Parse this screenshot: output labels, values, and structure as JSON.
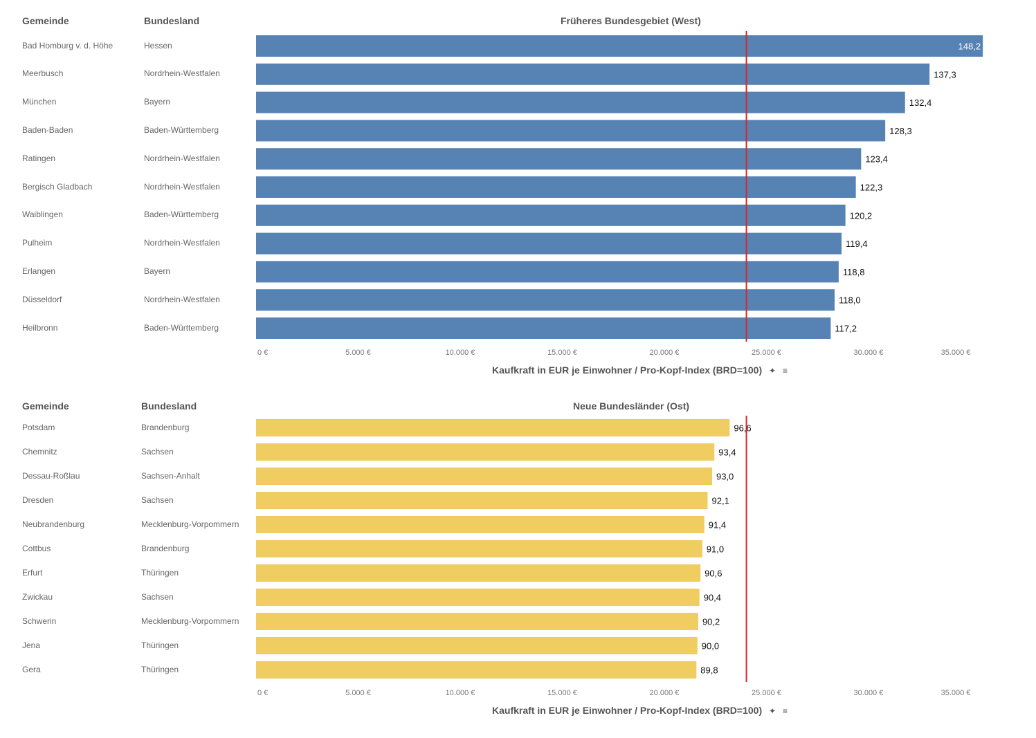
{
  "chart_data": [
    {
      "type": "bar",
      "orientation": "horizontal",
      "title": "Früheres Bundesgebiet (West)",
      "col_headers": {
        "gemeinde": "Gemeinde",
        "bundesland": "Bundesland"
      },
      "categories": [
        "Bad Homburg v. d. Höhe",
        "Meerbusch",
        "München",
        "Baden-Baden",
        "Ratingen",
        "Bergisch Gladbach",
        "Waiblingen",
        "Pulheim",
        "Erlangen",
        "Düsseldorf",
        "Heilbronn"
      ],
      "bundesland": [
        "Hessen",
        "Nordrhein-Westfalen",
        "Bayern",
        "Baden-Württemberg",
        "Nordrhein-Westfalen",
        "Nordrhein-Westfalen",
        "Baden-Württemberg",
        "Nordrhein-Westfalen",
        "Bayern",
        "Nordrhein-Westfalen",
        "Baden-Württemberg"
      ],
      "values": [
        35600,
        32990,
        31790,
        30820,
        29640,
        29380,
        28870,
        28680,
        28540,
        28340,
        28150
      ],
      "labels": [
        "148,2",
        "137,3",
        "132,4",
        "128,3",
        "123,4",
        "122,3",
        "120,2",
        "119,4",
        "118,8",
        "118,0",
        "117,2"
      ],
      "xlim": [
        0,
        35900
      ],
      "xticks": [
        0,
        5000,
        10000,
        15000,
        20000,
        25000,
        30000,
        35000
      ],
      "xtick_labels": [
        "0 €",
        "5.000 €",
        "10.000 €",
        "15.000 €",
        "20.000 €",
        "25.000 €",
        "30.000 €",
        "35.000 €"
      ],
      "reference_line": 24020,
      "xlabel": "Kaufkraft in EUR je Einwohner / Pro-Kopf-Index (BRD=100)",
      "bar_color": "#5683b4",
      "reference_color": "#d62728"
    },
    {
      "type": "bar",
      "orientation": "horizontal",
      "title": "Neue Bundesländer (Ost)",
      "col_headers": {
        "gemeinde": "Gemeinde",
        "bundesland": "Bundesland"
      },
      "categories": [
        "Potsdam",
        "Chemnitz",
        "Dessau-Roßlau",
        "Dresden",
        "Neubrandenburg",
        "Cottbus",
        "Erfurt",
        "Zwickau",
        "Schwerin",
        "Jena",
        "Gera"
      ],
      "bundesland": [
        "Brandenburg",
        "Sachsen",
        "Sachsen-Anhalt",
        "Sachsen",
        "Mecklenburg-Vorpommern",
        "Brandenburg",
        "Thüringen",
        "Sachsen",
        "Mecklenburg-Vorpommern",
        "Thüringen",
        "Thüringen"
      ],
      "values": [
        23200,
        22450,
        22340,
        22120,
        21960,
        21860,
        21770,
        21720,
        21660,
        21620,
        21570
      ],
      "labels": [
        "96,6",
        "93,4",
        "93,0",
        "92,1",
        "91,4",
        "91,0",
        "90,6",
        "90,4",
        "90,2",
        "90,0",
        "89,8"
      ],
      "xlim": [
        0,
        35900
      ],
      "xticks": [
        0,
        5000,
        10000,
        15000,
        20000,
        25000,
        30000,
        35000
      ],
      "xtick_labels": [
        "0 €",
        "5.000 €",
        "10.000 €",
        "15.000 €",
        "20.000 €",
        "25.000 €",
        "30.000 €",
        "35.000 €"
      ],
      "reference_line": 24020,
      "xlabel": "Kaufkraft in EUR je Einwohner / Pro-Kopf-Index (BRD=100)",
      "bar_color": "#f0cd61",
      "reference_color": "#d62728"
    }
  ],
  "icons": {
    "pin": "pin-icon",
    "sort": "sort-icon"
  }
}
